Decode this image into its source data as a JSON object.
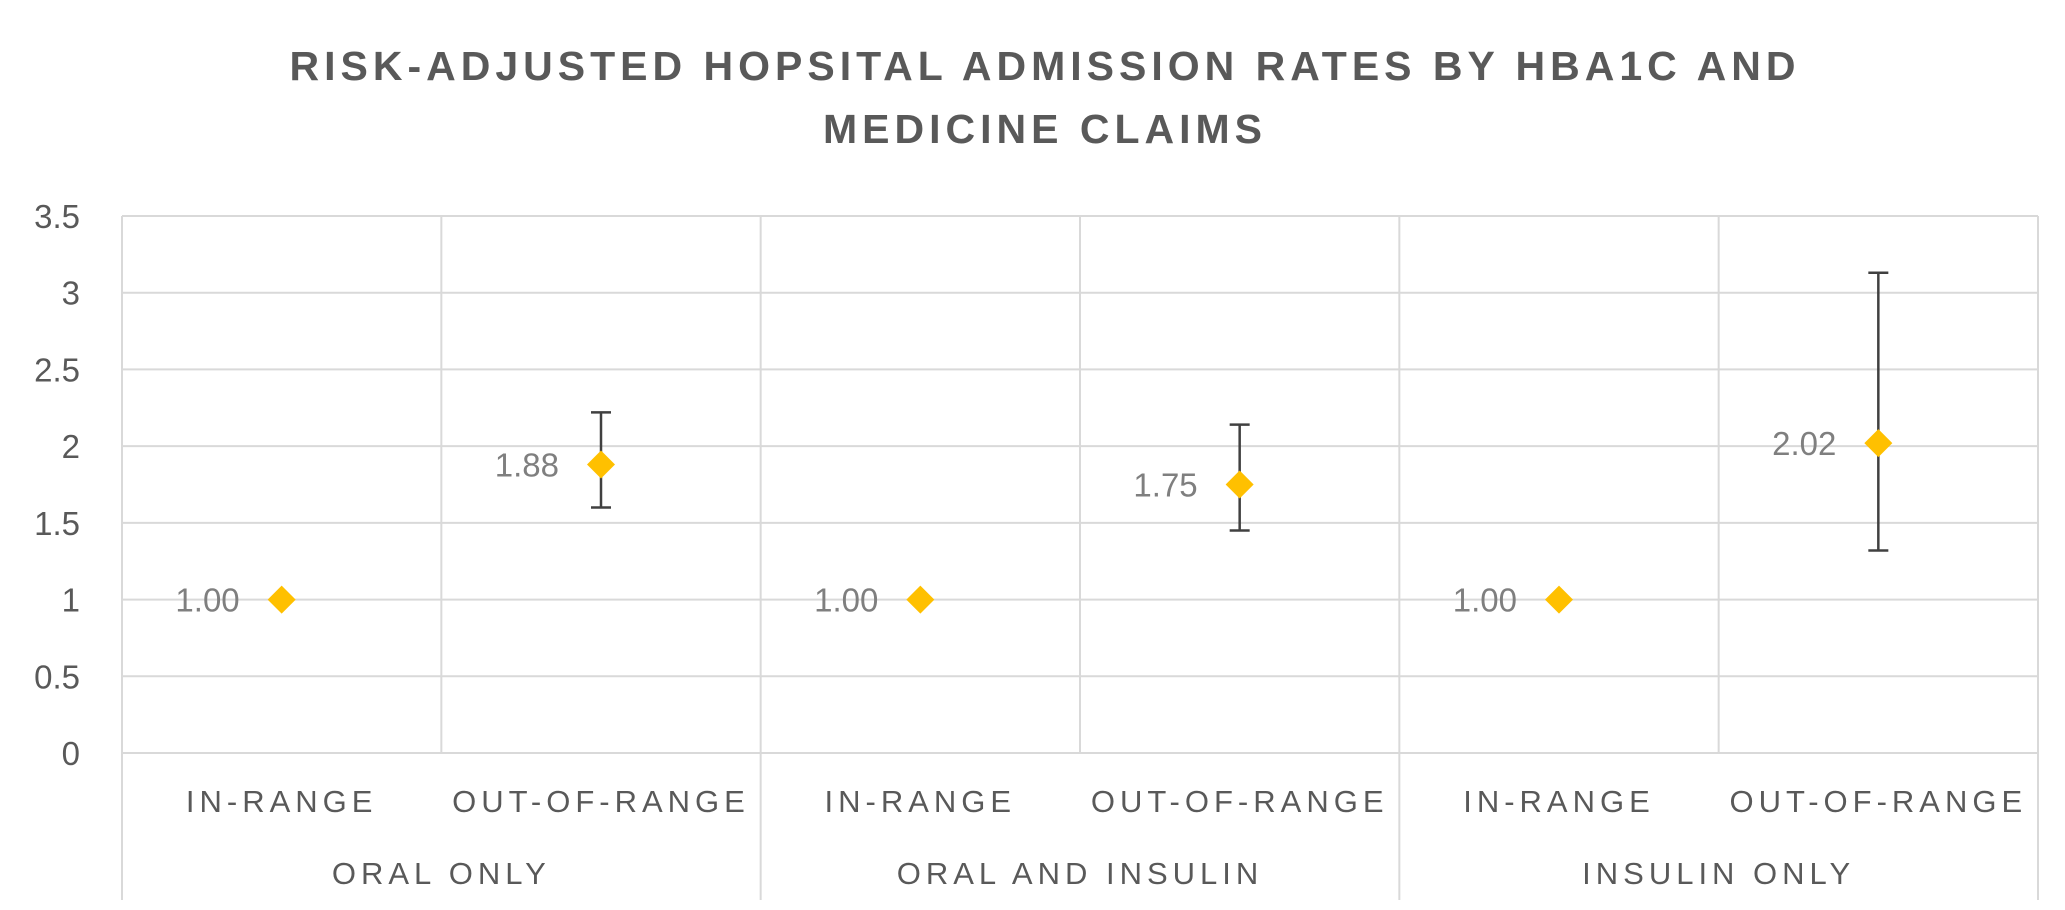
{
  "chart_data": {
    "type": "scatter",
    "title_lines": [
      "RISK-ADJUSTED HOPSITAL ADMISSION RATES BY HBA1C AND",
      "MEDICINE CLAIMS"
    ],
    "groups": [
      "ORAL ONLY",
      "ORAL AND INSULIN",
      "INSULIN ONLY"
    ],
    "categories": [
      "IN-RANGE",
      "OUT-OF-RANGE",
      "IN-RANGE",
      "OUT-OF-RANGE",
      "IN-RANGE",
      "OUT-OF-RANGE"
    ],
    "values": [
      1.0,
      1.88,
      1.0,
      1.75,
      1.0,
      2.02
    ],
    "data_labels": [
      "1.00",
      "1.88",
      "1.00",
      "1.75",
      "1.00",
      "2.02"
    ],
    "error_low": [
      null,
      1.6,
      null,
      1.45,
      null,
      1.32
    ],
    "error_high": [
      null,
      2.22,
      null,
      2.14,
      null,
      3.13
    ],
    "ylim": [
      0,
      3.5
    ],
    "yticks": [
      0,
      0.5,
      1,
      1.5,
      2,
      2.5,
      3,
      3.5
    ],
    "ytick_labels": [
      "0",
      "0.5",
      "1",
      "1.5",
      "2",
      "2.5",
      "3",
      "3.5"
    ],
    "grid": true,
    "marker": "diamond",
    "marker_color": "#FFC000",
    "error_bar_color": "#404040"
  }
}
